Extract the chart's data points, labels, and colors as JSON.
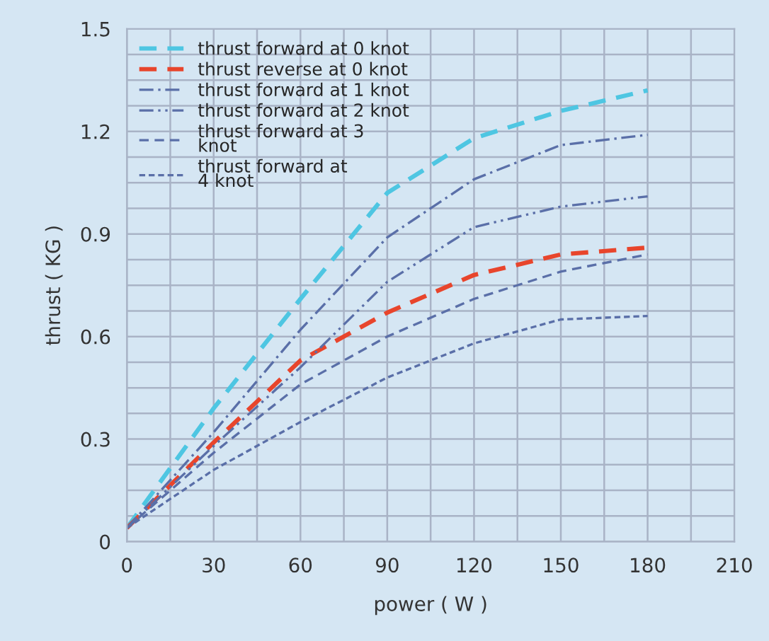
{
  "chart_data": {
    "type": "line",
    "xlabel": "power ( W )",
    "ylabel": "thrust ( KG )",
    "x": [
      0,
      30,
      60,
      90,
      120,
      150,
      180
    ],
    "series": [
      {
        "name": "thrust forward at 0 knot",
        "color": "#4ec6e2",
        "line_style": "dashed",
        "values": [
          0.04,
          0.39,
          0.71,
          1.02,
          1.18,
          1.26,
          1.32
        ]
      },
      {
        "name": "thrust reverse at 0 knot",
        "color": "#e8452c",
        "line_style": "dashed",
        "values": [
          0.04,
          0.29,
          0.53,
          0.67,
          0.78,
          0.84,
          0.86
        ]
      },
      {
        "name": "thrust forward at 1 knot",
        "color": "#5a6fa8",
        "line_style": "dashdot",
        "values": [
          0.04,
          0.32,
          0.62,
          0.89,
          1.06,
          1.16,
          1.19
        ]
      },
      {
        "name": "thrust forward at 2 knot",
        "color": "#5a6fa8",
        "line_style": "dashdotdot",
        "values": [
          0.04,
          0.28,
          0.51,
          0.76,
          0.92,
          0.98,
          1.01
        ]
      },
      {
        "name": "thrust forward at 3\nknot",
        "color": "#5a6fa8",
        "line_style": "dashed",
        "values": [
          0.04,
          0.26,
          0.46,
          0.6,
          0.71,
          0.79,
          0.84
        ]
      },
      {
        "name": "thrust forward at\n4 knot",
        "color": "#5a6fa8",
        "line_style": "finedash",
        "values": [
          0.04,
          0.21,
          0.35,
          0.48,
          0.58,
          0.65,
          0.66
        ]
      }
    ],
    "xlim": [
      0,
      210
    ],
    "xticks": [
      0,
      30,
      60,
      90,
      120,
      150,
      180,
      210
    ],
    "ylim": [
      0,
      1.5
    ],
    "yticks": [
      0,
      0.3,
      0.6,
      0.9,
      1.2,
      1.5
    ],
    "grid": true,
    "legend": "top left"
  }
}
